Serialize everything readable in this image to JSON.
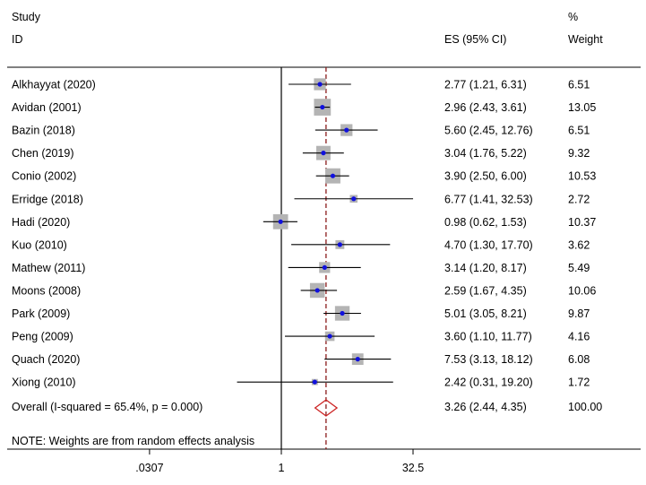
{
  "chart_data": {
    "type": "forest",
    "headers": {
      "study_line1": "Study",
      "study_line2": "ID",
      "es": "ES (95% CI)",
      "weight_line1": "%",
      "weight_line2": "Weight"
    },
    "x_scale": "log",
    "x_ticks": [
      {
        "value": 0.0307,
        "label": ".0307"
      },
      {
        "value": 1,
        "label": "1"
      },
      {
        "value": 32.5,
        "label": "32.5"
      }
    ],
    "xlim": [
      0.0307,
      32.5
    ],
    "studies": [
      {
        "label": "Alkhayyat (2020)",
        "es": 2.77,
        "lo": 1.21,
        "hi": 6.31,
        "ci_text": "2.77 (1.21, 6.31)",
        "weight": "6.51"
      },
      {
        "label": "Avidan (2001)",
        "es": 2.96,
        "lo": 2.43,
        "hi": 3.61,
        "ci_text": "2.96 (2.43, 3.61)",
        "weight": "13.05"
      },
      {
        "label": "Bazin (2018)",
        "es": 5.6,
        "lo": 2.45,
        "hi": 12.76,
        "ci_text": "5.60 (2.45, 12.76)",
        "weight": "6.51"
      },
      {
        "label": "Chen (2019)",
        "es": 3.04,
        "lo": 1.76,
        "hi": 5.22,
        "ci_text": "3.04 (1.76, 5.22)",
        "weight": "9.32"
      },
      {
        "label": "Conio (2002)",
        "es": 3.9,
        "lo": 2.5,
        "hi": 6.0,
        "ci_text": "3.90 (2.50, 6.00)",
        "weight": "10.53"
      },
      {
        "label": "Erridge (2018)",
        "es": 6.77,
        "lo": 1.41,
        "hi": 32.53,
        "ci_text": "6.77 (1.41, 32.53)",
        "weight": "2.72"
      },
      {
        "label": "Hadi (2020)",
        "es": 0.98,
        "lo": 0.62,
        "hi": 1.53,
        "ci_text": "0.98 (0.62, 1.53)",
        "weight": "10.37"
      },
      {
        "label": "Kuo (2010)",
        "es": 4.7,
        "lo": 1.3,
        "hi": 17.7,
        "ci_text": "4.70 (1.30, 17.70)",
        "weight": "3.62"
      },
      {
        "label": "Mathew (2011)",
        "es": 3.14,
        "lo": 1.2,
        "hi": 8.17,
        "ci_text": "3.14 (1.20, 8.17)",
        "weight": "5.49"
      },
      {
        "label": "Moons (2008)",
        "es": 2.59,
        "lo": 1.67,
        "hi": 4.35,
        "ci_text": "2.59 (1.67, 4.35)",
        "weight": "10.06"
      },
      {
        "label": "Park (2009)",
        "es": 5.01,
        "lo": 3.05,
        "hi": 8.21,
        "ci_text": "5.01 (3.05, 8.21)",
        "weight": "9.87"
      },
      {
        "label": "Peng (2009)",
        "es": 3.6,
        "lo": 1.1,
        "hi": 11.77,
        "ci_text": "3.60 (1.10, 11.77)",
        "weight": "4.16"
      },
      {
        "label": "Quach (2020)",
        "es": 7.53,
        "lo": 3.13,
        "hi": 18.12,
        "ci_text": "7.53 (3.13, 18.12)",
        "weight": "6.08"
      },
      {
        "label": "Xiong (2010)",
        "es": 2.42,
        "lo": 0.31,
        "hi": 19.2,
        "ci_text": "2.42 (0.31, 19.20)",
        "weight": "1.72"
      }
    ],
    "overall": {
      "label": "Overall  (I-squared = 65.4%, p = 0.000)",
      "es": 3.26,
      "lo": 2.44,
      "hi": 4.35,
      "ci_text": "3.26 (2.44, 4.35)",
      "weight": "100.00"
    },
    "note": "NOTE: Weights are from random effects analysis",
    "colors": {
      "marker": "#1010dd",
      "weight_box": "#b4b4b4",
      "diamond": "#cc2222",
      "reference_line": "#8a1a1a",
      "axis": "#000000"
    }
  }
}
